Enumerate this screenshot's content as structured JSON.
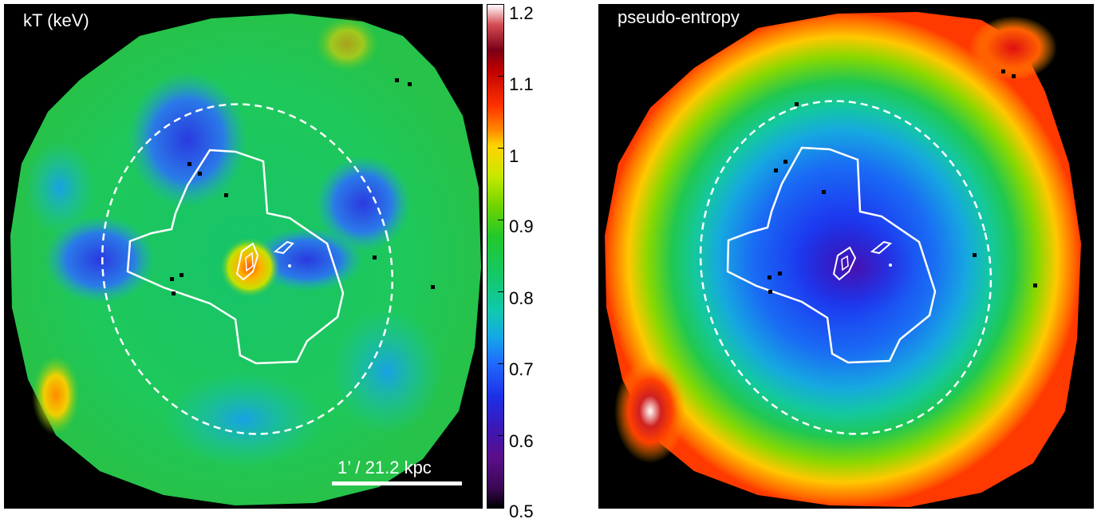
{
  "left_panel": {
    "label": "kT (keV)",
    "scalebar_label": "1’ / 21.2 kpc"
  },
  "right_panel": {
    "label": "pseudo-entropy"
  },
  "colorbar": {
    "ticks": [
      "1.2",
      "1.1",
      "1",
      "0.9",
      "0.8",
      "0.7",
      "0.6",
      "0.5"
    ],
    "min": 0.5,
    "max": 1.2
  }
}
